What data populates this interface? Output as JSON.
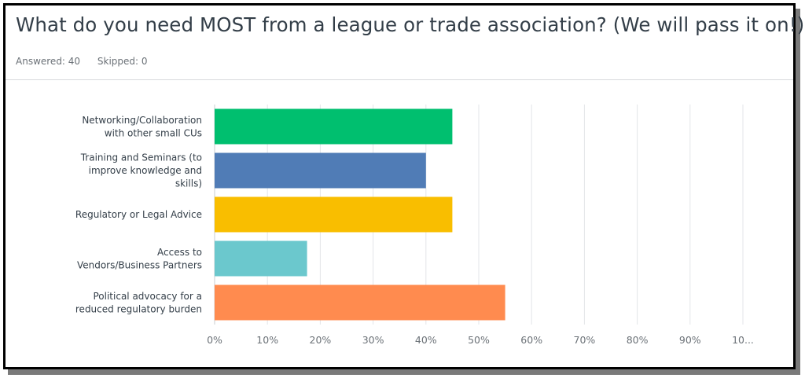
{
  "title": "What do you need MOST from a league or trade association? (We will pass it on!)",
  "meta": {
    "answered": "Answered: 40",
    "skipped": "Skipped: 0"
  },
  "chart_data": {
    "type": "bar",
    "orientation": "horizontal",
    "title": "",
    "xlabel": "",
    "ylabel": "",
    "xlim": [
      0,
      100
    ],
    "grid": true,
    "categories": [
      [
        "Networking/Collaboration",
        "with other small CUs"
      ],
      [
        "Training and Seminars (to",
        "improve knowledge and",
        "skills)"
      ],
      [
        "Regulatory or Legal Advice"
      ],
      [
        "Access to",
        "Vendors/Business Partners"
      ],
      [
        "Political advocacy for a",
        "reduced regulatory burden"
      ]
    ],
    "values": [
      45,
      40,
      45,
      17.5,
      55
    ],
    "colors": [
      "#00bf6f",
      "#507cb6",
      "#f9be00",
      "#6bc8cd",
      "#ff8b4f"
    ],
    "tick_labels": [
      "0%",
      "10%",
      "20%",
      "30%",
      "40%",
      "50%",
      "60%",
      "70%",
      "80%",
      "90%",
      "10..."
    ]
  }
}
